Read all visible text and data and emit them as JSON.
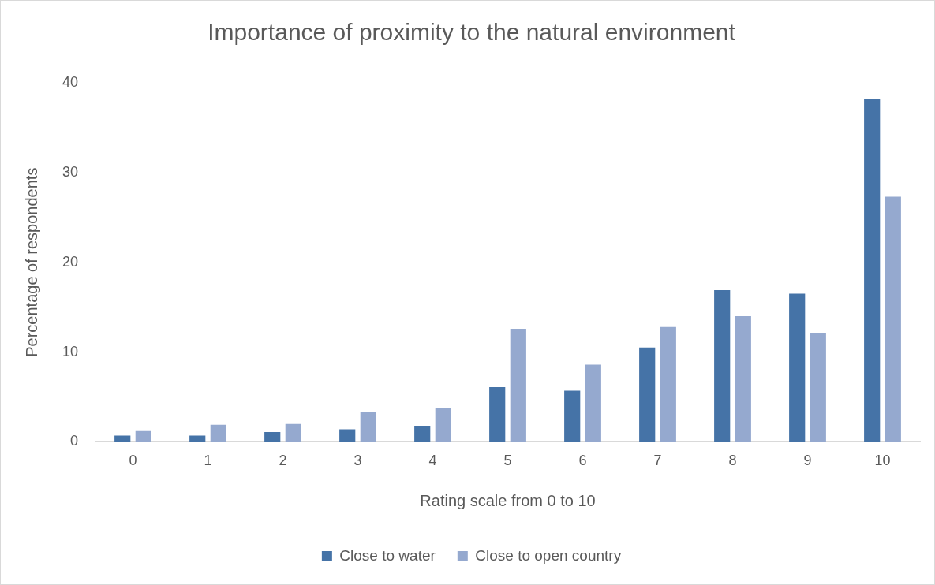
{
  "chart_data": {
    "type": "bar",
    "title": "Importance of proximity to the natural environment",
    "xlabel": "Rating scale from 0 to 10",
    "ylabel": "Percentage of respondents",
    "categories": [
      "0",
      "1",
      "2",
      "3",
      "4",
      "5",
      "6",
      "7",
      "8",
      "9",
      "10"
    ],
    "series": [
      {
        "name": "Close to water",
        "color": "#4573a7",
        "values": [
          0.7,
          0.7,
          1.1,
          1.4,
          1.8,
          6.1,
          5.7,
          10.5,
          16.9,
          16.5,
          38.2
        ]
      },
      {
        "name": "Close to open country",
        "color": "#95a9cf",
        "values": [
          1.2,
          1.9,
          2.0,
          3.3,
          3.8,
          12.6,
          8.6,
          12.8,
          14.0,
          12.1,
          27.3
        ]
      }
    ],
    "ylim": [
      0,
      40
    ],
    "yticks": [
      0,
      10,
      20,
      30,
      40
    ],
    "legend": "bottom"
  }
}
